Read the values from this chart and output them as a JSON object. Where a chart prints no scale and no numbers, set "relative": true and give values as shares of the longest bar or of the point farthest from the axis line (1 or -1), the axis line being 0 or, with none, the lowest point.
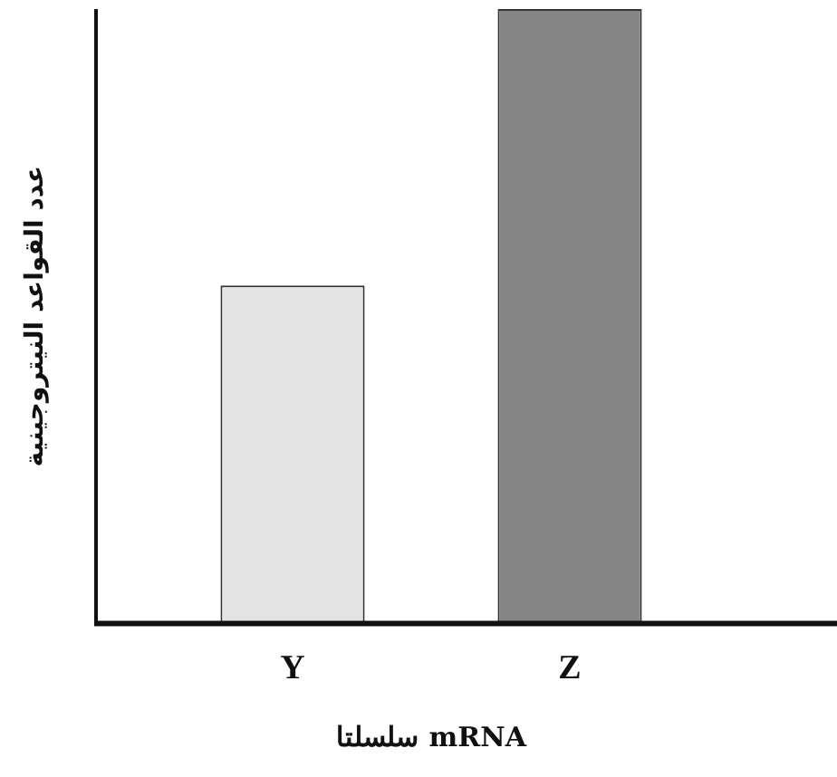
{
  "chart_data": {
    "type": "bar",
    "relative": true,
    "categories": [
      "Y",
      "Z"
    ],
    "colors": [
      "#e4e4e4",
      "#858585"
    ],
    "values": [
      0.55,
      1
    ],
    "xlabel": "سلسلتا mRNA",
    "ylabel": "عدد القواعد النيتروجينية"
  }
}
